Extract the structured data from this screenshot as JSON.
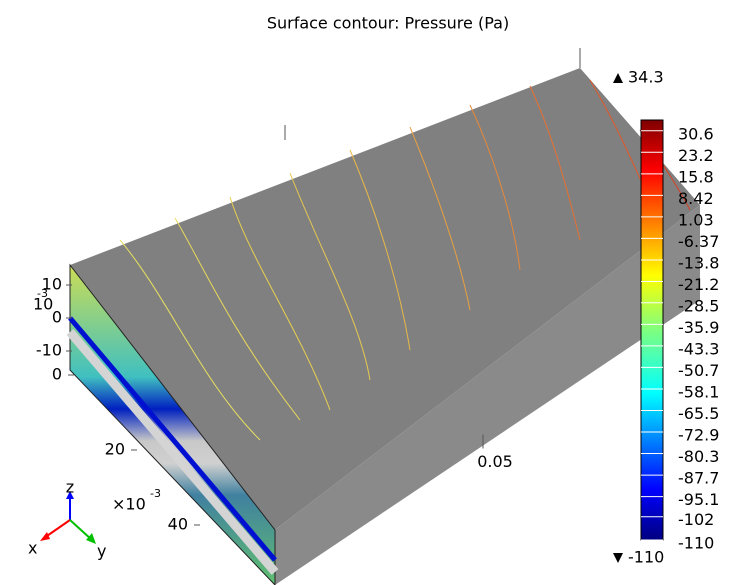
{
  "chart_data": {
    "type": "surface-contour",
    "title": "Surface contour: Pressure (Pa)",
    "colorbar": {
      "clim": [
        -110,
        34.3
      ],
      "max_label": "34.3",
      "min_label": "-110",
      "ticks": [
        30.6,
        23.2,
        15.8,
        8.42,
        1.03,
        -6.37,
        -13.8,
        -21.2,
        -28.5,
        -35.9,
        -43.3,
        -50.7,
        -58.1,
        -65.5,
        -72.9,
        -80.3,
        -87.7,
        -95.1,
        -102,
        -110
      ]
    },
    "z_axis": {
      "ticks": [
        10,
        0,
        -10
      ],
      "multiplier": "10",
      "exponent": "-3"
    },
    "y_axis": {
      "ticks": [
        0,
        20,
        40
      ],
      "multiplier": "×10",
      "exponent": "-3"
    },
    "x_axis": {
      "ticks": [
        0.05
      ]
    },
    "triad": {
      "x": "x",
      "y": "y",
      "z": "z"
    }
  }
}
